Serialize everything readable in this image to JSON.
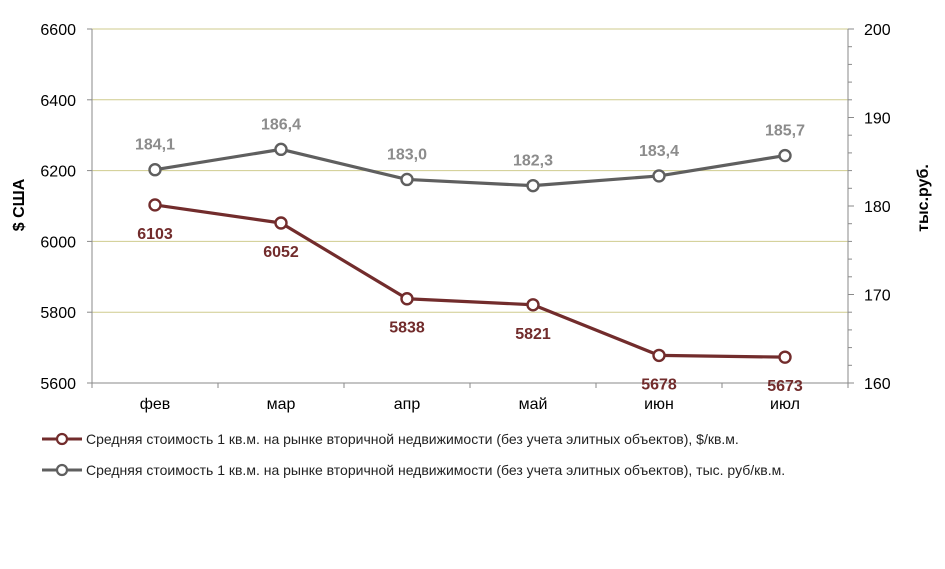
{
  "chart_data": {
    "type": "line",
    "categories": [
      "фев",
      "мар",
      "апр",
      "май",
      "июн",
      "июл"
    ],
    "series": [
      {
        "name": "Средняя стоимость 1 кв.м. на рынке вторичной недвижимости (без учета элитных объектов), $/кв.м.",
        "axis": "left",
        "color": "#722c2c",
        "values": [
          6103,
          6052,
          5838,
          5821,
          5678,
          5673
        ],
        "labels": [
          "6103",
          "6052",
          "5838",
          "5821",
          "5678",
          "5673"
        ]
      },
      {
        "name": "Средняя стоимость 1 кв.м. на рынке вторичной недвижимости (без учета элитных объектов), тыс. руб/кв.м.",
        "axis": "right",
        "color": "#5f5f5f",
        "values": [
          184.1,
          186.4,
          183.0,
          182.3,
          183.4,
          185.7
        ],
        "labels": [
          "184,1",
          "186,4",
          "183,0",
          "182,3",
          "183,4",
          "185,7"
        ]
      }
    ],
    "y_left": {
      "label": "$ США",
      "ylim": [
        5600,
        6600
      ],
      "ticks": [
        "5600",
        "5800",
        "6000",
        "6200",
        "6400",
        "6600"
      ]
    },
    "y_right": {
      "label": "тыс.руб.",
      "ylim": [
        160,
        200
      ],
      "ticks": [
        "160",
        "170",
        "180",
        "190",
        "200"
      ]
    },
    "grid": true,
    "legend": "bottom"
  }
}
